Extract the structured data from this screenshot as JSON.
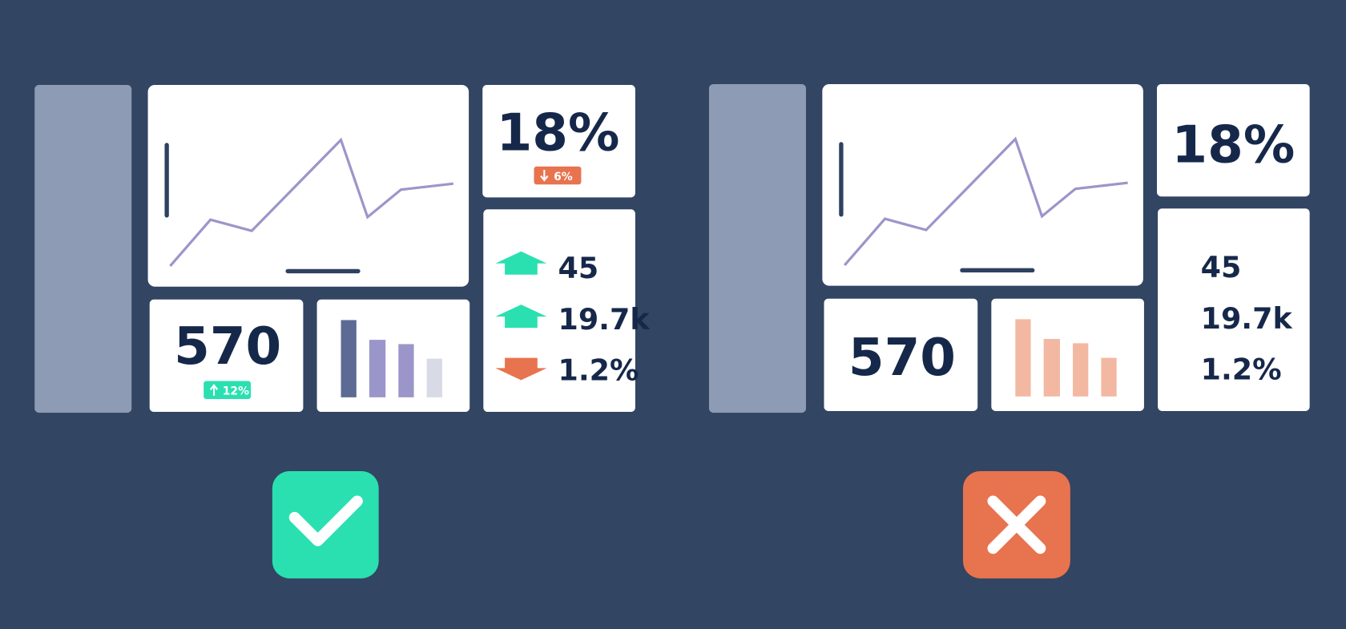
{
  "panels": [
    {
      "kpi_top": "18%",
      "kpi_top_badge": "6%",
      "kpi_main": "570",
      "kpi_main_badge": "12%",
      "metrics": [
        "45",
        "19.7k",
        "1.2%"
      ]
    },
    {
      "kpi_top": "18%",
      "kpi_main": "570",
      "metrics": [
        "45",
        "19.7k",
        "1.2%"
      ]
    }
  ]
}
